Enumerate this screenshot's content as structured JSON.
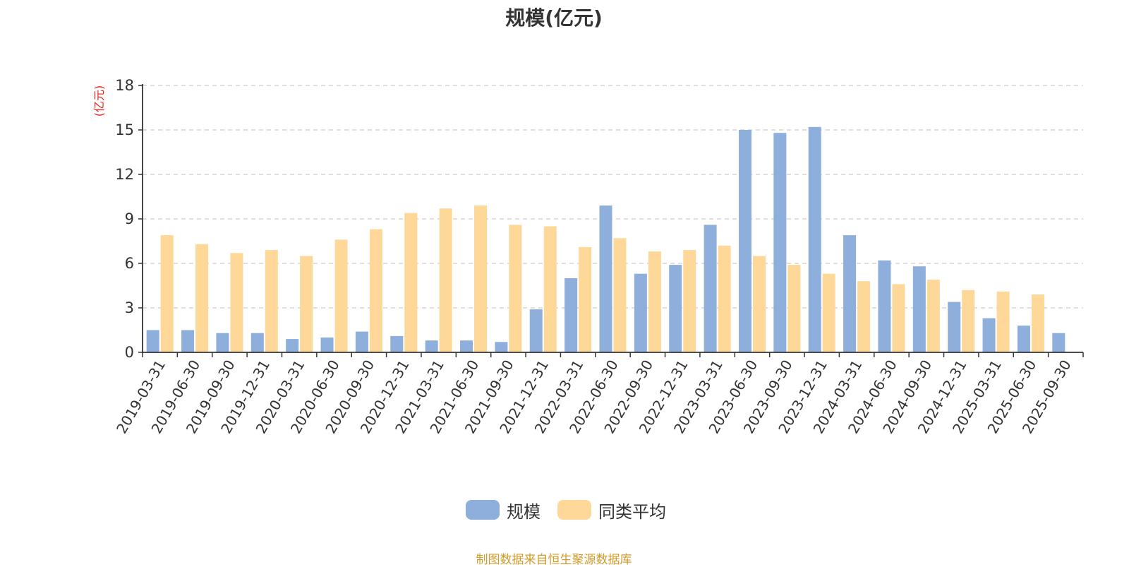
{
  "chart_data": {
    "type": "bar",
    "title": "规模(亿元)",
    "y_unit_label": "(亿元)",
    "ylim": [
      0,
      18
    ],
    "yticks": [
      0,
      3,
      6,
      9,
      12,
      15,
      18
    ],
    "grid": true,
    "legend_position": "bottom-center",
    "categories": [
      "2019-03-31",
      "2019-06-30",
      "2019-09-30",
      "2019-12-31",
      "2020-03-31",
      "2020-06-30",
      "2020-09-30",
      "2020-12-31",
      "2021-03-31",
      "2021-06-30",
      "2021-09-30",
      "2021-12-31",
      "2022-03-31",
      "2022-06-30",
      "2022-09-30",
      "2022-12-31",
      "2023-03-31",
      "2023-06-30",
      "2023-09-30",
      "2023-12-31",
      "2024-03-31",
      "2024-06-30",
      "2024-09-30",
      "2024-12-31",
      "2025-03-31",
      "2025-06-30",
      "2025-09-30"
    ],
    "series": [
      {
        "name": "规模",
        "color": "#8eaedb",
        "values": [
          1.5,
          1.5,
          1.3,
          1.3,
          0.9,
          1.0,
          1.4,
          1.1,
          0.8,
          0.8,
          0.7,
          2.9,
          5.0,
          9.9,
          5.3,
          5.9,
          8.6,
          15.0,
          14.8,
          15.2,
          7.9,
          6.2,
          5.8,
          3.4,
          2.3,
          1.8,
          1.3
        ]
      },
      {
        "name": "同类平均",
        "color": "#fdd898",
        "values": [
          7.9,
          7.3,
          6.7,
          6.9,
          6.5,
          7.6,
          8.3,
          9.4,
          9.7,
          9.9,
          8.6,
          8.5,
          7.1,
          7.7,
          6.8,
          6.9,
          7.2,
          6.5,
          5.9,
          5.3,
          4.8,
          4.6,
          4.9,
          4.2,
          4.1,
          3.9,
          null
        ]
      }
    ]
  },
  "footer": {
    "source": "制图数据来自恒生聚源数据库"
  },
  "colors": {
    "grid": "#cccccc",
    "axis": "#333333",
    "unit": "#e8231b",
    "source": "#d39c2a"
  }
}
